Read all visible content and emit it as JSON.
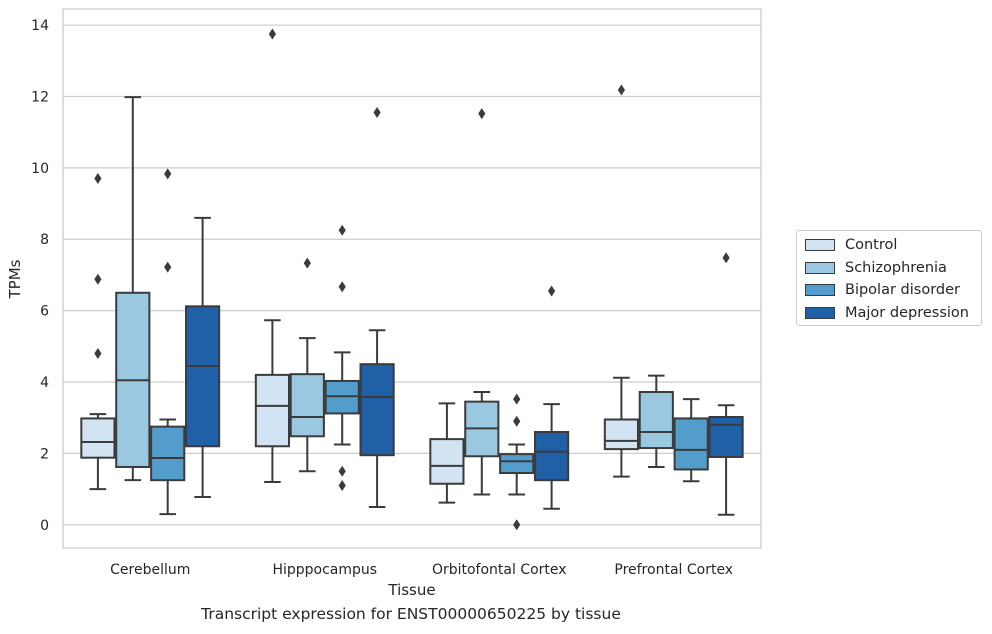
{
  "chart_data": {
    "type": "box",
    "title": "",
    "xlabel": "Tissue",
    "ylabel": "TPMs",
    "ylim": [
      -0.65,
      14.45
    ],
    "yticks": [
      0,
      2,
      4,
      6,
      8,
      10,
      12,
      14
    ],
    "grid": "horizontal",
    "legend_placement": "right",
    "categories": [
      "Cerebellum",
      "Hipppocampus",
      "Orbitofontal Cortex",
      "Prefrontal Cortex"
    ],
    "series": [
      {
        "name": "Control",
        "color": "#d2e3f3",
        "boxes": [
          {
            "whisker_low": 1.0,
            "q1": 1.88,
            "median": 2.32,
            "q3": 2.98,
            "whisker_high": 3.1,
            "outliers": [
              4.8,
              6.88,
              9.7
            ]
          },
          {
            "whisker_low": 1.2,
            "q1": 2.2,
            "median": 3.33,
            "q3": 4.2,
            "whisker_high": 5.73,
            "outliers": [
              13.75
            ]
          },
          {
            "whisker_low": 0.62,
            "q1": 1.15,
            "median": 1.65,
            "q3": 2.4,
            "whisker_high": 3.4,
            "outliers": []
          },
          {
            "whisker_low": 1.35,
            "q1": 2.12,
            "median": 2.35,
            "q3": 2.95,
            "whisker_high": 4.12,
            "outliers": [
              12.18
            ]
          }
        ]
      },
      {
        "name": "Schizophrenia",
        "color": "#9ac8e0",
        "boxes": [
          {
            "whisker_low": 1.25,
            "q1": 1.62,
            "median": 4.05,
            "q3": 6.5,
            "whisker_high": 11.98,
            "outliers": []
          },
          {
            "whisker_low": 1.5,
            "q1": 2.48,
            "median": 3.02,
            "q3": 4.22,
            "whisker_high": 5.23,
            "outliers": [
              7.33
            ]
          },
          {
            "whisker_low": 0.85,
            "q1": 1.92,
            "median": 2.7,
            "q3": 3.45,
            "whisker_high": 3.72,
            "outliers": [
              11.52
            ]
          },
          {
            "whisker_low": 1.62,
            "q1": 2.15,
            "median": 2.6,
            "q3": 3.72,
            "whisker_high": 4.18,
            "outliers": []
          }
        ]
      },
      {
        "name": "Bipolar disorder",
        "color": "#529dcc",
        "boxes": [
          {
            "whisker_low": 0.3,
            "q1": 1.25,
            "median": 1.87,
            "q3": 2.75,
            "whisker_high": 2.95,
            "outliers": [
              7.22,
              9.83
            ]
          },
          {
            "whisker_low": 2.25,
            "q1": 3.12,
            "median": 3.6,
            "q3": 4.03,
            "whisker_high": 4.83,
            "outliers": [
              1.1,
              1.5,
              6.67,
              8.25
            ]
          },
          {
            "whisker_low": 0.85,
            "q1": 1.45,
            "median": 1.78,
            "q3": 1.98,
            "whisker_high": 2.25,
            "outliers": [
              0.0,
              2.9,
              3.52
            ]
          },
          {
            "whisker_low": 1.22,
            "q1": 1.55,
            "median": 2.1,
            "q3": 2.98,
            "whisker_high": 3.52,
            "outliers": []
          }
        ]
      },
      {
        "name": "Major depression",
        "color": "#2060a7",
        "boxes": [
          {
            "whisker_low": 0.78,
            "q1": 2.2,
            "median": 4.45,
            "q3": 6.12,
            "whisker_high": 8.6,
            "outliers": []
          },
          {
            "whisker_low": 0.5,
            "q1": 1.95,
            "median": 3.58,
            "q3": 4.5,
            "whisker_high": 5.45,
            "outliers": [
              11.55
            ]
          },
          {
            "whisker_low": 0.45,
            "q1": 1.25,
            "median": 2.05,
            "q3": 2.6,
            "whisker_high": 3.38,
            "outliers": [
              6.55
            ]
          },
          {
            "whisker_low": 0.28,
            "q1": 1.9,
            "median": 2.8,
            "q3": 3.02,
            "whisker_high": 3.35,
            "outliers": [
              7.48
            ]
          }
        ]
      }
    ]
  },
  "caption": "Transcript expression for ENST00000650225 by tissue"
}
